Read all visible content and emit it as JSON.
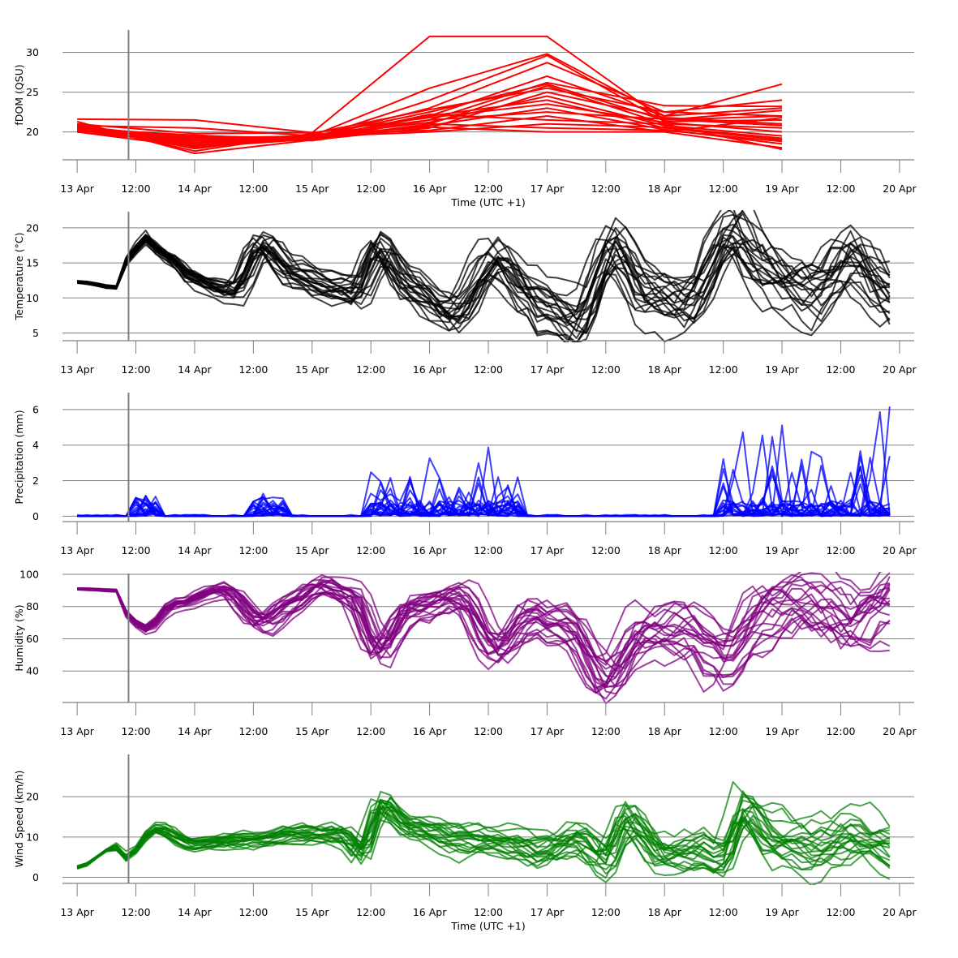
{
  "figure": {
    "background": "#ffffff",
    "grid_color": "#808080",
    "axis_color": "#808080",
    "nowcast_line_color": "#808080",
    "nowcast_time": "2024-04-13T10:30",
    "x_range": [
      "2024-04-12T21:00",
      "2024-04-20T03:00"
    ],
    "x_ticks": [
      {
        "t": "2024-04-13T00:00",
        "label": "13 Apr"
      },
      {
        "t": "2024-04-13T12:00",
        "label": "12:00"
      },
      {
        "t": "2024-04-14T00:00",
        "label": "14 Apr"
      },
      {
        "t": "2024-04-14T12:00",
        "label": "12:00"
      },
      {
        "t": "2024-04-15T00:00",
        "label": "15 Apr"
      },
      {
        "t": "2024-04-15T12:00",
        "label": "12:00"
      },
      {
        "t": "2024-04-16T00:00",
        "label": "16 Apr"
      },
      {
        "t": "2024-04-16T12:00",
        "label": "12:00"
      },
      {
        "t": "2024-04-17T00:00",
        "label": "17 Apr"
      },
      {
        "t": "2024-04-17T12:00",
        "label": "12:00"
      },
      {
        "t": "2024-04-18T00:00",
        "label": "18 Apr"
      },
      {
        "t": "2024-04-18T12:00",
        "label": "12:00"
      },
      {
        "t": "2024-04-19T00:00",
        "label": "19 Apr"
      },
      {
        "t": "2024-04-19T12:00",
        "label": "12:00"
      },
      {
        "t": "2024-04-20T00:00",
        "label": "20 Apr"
      }
    ],
    "xlabel": "Time (UTC +1)"
  },
  "chart_data": [
    {
      "type": "line",
      "ylabel": "fDOM (QSU)",
      "ylim": [
        16.5,
        32.8
      ],
      "yticks": [
        20,
        25,
        30
      ],
      "color": "#ff0000",
      "opacity": 1.0,
      "show_xlabel": true,
      "x": [
        "2024-04-13T00:00",
        "2024-04-14T00:00",
        "2024-04-15T00:00",
        "2024-04-16T00:00",
        "2024-04-17T00:00",
        "2024-04-18T00:00",
        "2024-04-19T00:00"
      ],
      "series": [
        {
          "values": [
            21.6,
            21.5,
            19.9,
            32.0,
            32.0,
            21.5,
            22.0
          ]
        },
        {
          "values": [
            20.8,
            20.5,
            19.5,
            25.5,
            29.8,
            22.0,
            26.0
          ]
        },
        {
          "values": [
            20.5,
            19.5,
            19.2,
            24.0,
            29.6,
            21.3,
            21.5
          ]
        },
        {
          "values": [
            20.2,
            19.0,
            19.3,
            23.0,
            28.7,
            22.5,
            24.0
          ]
        },
        {
          "values": [
            21.3,
            17.3,
            19.0,
            22.0,
            27.0,
            22.0,
            23.0
          ]
        },
        {
          "values": [
            20.6,
            18.0,
            19.6,
            21.5,
            26.2,
            23.3,
            23.2
          ]
        },
        {
          "values": [
            20.0,
            18.6,
            19.4,
            22.5,
            26.0,
            21.5,
            22.7
          ]
        },
        {
          "values": [
            20.4,
            18.2,
            19.1,
            21.0,
            25.8,
            21.0,
            20.5
          ]
        },
        {
          "values": [
            20.9,
            17.6,
            19.8,
            22.8,
            25.5,
            22.5,
            22.0
          ]
        },
        {
          "values": [
            20.1,
            18.9,
            19.0,
            20.5,
            25.0,
            21.8,
            21.0
          ]
        },
        {
          "values": [
            20.7,
            19.2,
            19.5,
            21.2,
            24.5,
            20.8,
            19.5
          ]
        },
        {
          "values": [
            20.3,
            18.4,
            19.2,
            22.0,
            24.0,
            20.5,
            19.0
          ]
        },
        {
          "values": [
            21.0,
            19.8,
            19.9,
            21.8,
            23.5,
            21.2,
            20.0
          ]
        },
        {
          "values": [
            20.5,
            18.7,
            19.3,
            20.8,
            23.0,
            20.3,
            18.5
          ]
        },
        {
          "values": [
            20.2,
            19.4,
            19.0,
            21.5,
            22.5,
            21.6,
            20.8
          ]
        },
        {
          "values": [
            20.8,
            17.9,
            19.7,
            20.2,
            22.0,
            20.0,
            18.0
          ]
        },
        {
          "values": [
            20.0,
            18.1,
            19.1,
            22.2,
            21.5,
            21.0,
            17.8
          ]
        },
        {
          "values": [
            20.6,
            19.0,
            19.4,
            20.0,
            21.0,
            20.6,
            19.2
          ]
        },
        {
          "values": [
            20.4,
            19.6,
            18.9,
            21.0,
            20.5,
            20.2,
            18.8
          ]
        },
        {
          "values": [
            20.9,
            18.3,
            19.6,
            20.6,
            20.0,
            20.0,
            21.8
          ]
        }
      ]
    },
    {
      "type": "line",
      "ylabel": "Temperature (°C)",
      "ylim": [
        3.9,
        22.3
      ],
      "yticks": [
        5,
        10,
        15,
        20
      ],
      "color": "#000000",
      "opacity": 0.75,
      "show_xlabel": false,
      "members": 20,
      "t_start": "2024-04-13T00:00",
      "t_end": "2024-04-19T23:00",
      "step_hours": 2,
      "spread_start": "2024-04-13T10:00",
      "spread_scale": 1.8,
      "spread_growth": 2.2,
      "phase_jitter_hours": 2.5,
      "anchors": [
        [
          "2024-04-13T00:00",
          12.3
        ],
        [
          "2024-04-13T08:00",
          11.5
        ],
        [
          "2024-04-13T11:00",
          16.5
        ],
        [
          "2024-04-13T14:00",
          18.7
        ],
        [
          "2024-04-13T18:00",
          16.0
        ],
        [
          "2024-04-14T00:00",
          12.8
        ],
        [
          "2024-04-14T08:00",
          11.3
        ],
        [
          "2024-04-14T14:00",
          18.2
        ],
        [
          "2024-04-14T20:00",
          14.0
        ],
        [
          "2024-04-15T05:00",
          11.8
        ],
        [
          "2024-04-15T09:00",
          10.8
        ],
        [
          "2024-04-15T14:00",
          17.5
        ],
        [
          "2024-04-15T20:00",
          12.0
        ],
        [
          "2024-04-16T05:00",
          7.8
        ],
        [
          "2024-04-16T14:00",
          15.5
        ],
        [
          "2024-04-16T20:00",
          11.0
        ],
        [
          "2024-04-17T00:00",
          8.0
        ],
        [
          "2024-04-17T06:00",
          6.0
        ],
        [
          "2024-04-17T14:00",
          17.5
        ],
        [
          "2024-04-17T20:00",
          11.0
        ],
        [
          "2024-04-18T05:00",
          9.5
        ],
        [
          "2024-04-18T14:00",
          19.8
        ],
        [
          "2024-04-18T20:00",
          15.0
        ],
        [
          "2024-04-19T02:00",
          12.5
        ],
        [
          "2024-04-19T07:00",
          11.5
        ],
        [
          "2024-04-19T14:00",
          16.5
        ],
        [
          "2024-04-19T23:00",
          10.5
        ]
      ]
    },
    {
      "type": "line",
      "ylabel": "Precipitation (mm)",
      "ylim": [
        -0.3,
        6.95
      ],
      "yticks": [
        0,
        2,
        4,
        6
      ],
      "color": "#0000ff",
      "opacity": 0.75,
      "show_xlabel": false,
      "members": 20,
      "t_start": "2024-04-13T00:00",
      "t_end": "2024-04-19T23:00",
      "step_hours": 2,
      "rain_windows": [
        {
          "start": "2024-04-13T11:00",
          "end": "2024-04-13T17:00",
          "max": 1.3
        },
        {
          "start": "2024-04-14T11:00",
          "end": "2024-04-14T19:00",
          "max": 1.3
        },
        {
          "start": "2024-04-15T11:00",
          "end": "2024-04-16T18:00",
          "max": 3.9
        },
        {
          "start": "2024-04-18T12:00",
          "end": "2024-04-19T23:00",
          "max": 6.5
        }
      ]
    },
    {
      "type": "line",
      "ylabel": "Humidity (%)",
      "ylim": [
        20.5,
        100.5
      ],
      "yticks": [
        40,
        60,
        80,
        100
      ],
      "color": "#800080",
      "opacity": 0.75,
      "show_xlabel": false,
      "members": 20,
      "t_start": "2024-04-13T00:00",
      "t_end": "2024-04-19T23:00",
      "step_hours": 2,
      "spread_start": "2024-04-13T10:00",
      "spread_scale": 5,
      "spread_growth": 3.5,
      "phase_jitter_hours": 2.5,
      "anchors": [
        [
          "2024-04-13T00:00",
          91
        ],
        [
          "2024-04-13T08:00",
          90
        ],
        [
          "2024-04-13T11:00",
          72
        ],
        [
          "2024-04-13T14:00",
          67
        ],
        [
          "2024-04-13T20:00",
          82
        ],
        [
          "2024-04-14T06:00",
          91
        ],
        [
          "2024-04-14T14:00",
          70
        ],
        [
          "2024-04-14T20:00",
          82
        ],
        [
          "2024-04-15T02:00",
          94
        ],
        [
          "2024-04-15T08:00",
          88
        ],
        [
          "2024-04-15T14:00",
          52
        ],
        [
          "2024-04-15T20:00",
          78
        ],
        [
          "2024-04-16T06:00",
          86
        ],
        [
          "2024-04-16T14:00",
          52
        ],
        [
          "2024-04-16T20:00",
          72
        ],
        [
          "2024-04-17T04:00",
          68
        ],
        [
          "2024-04-17T12:00",
          34
        ],
        [
          "2024-04-17T20:00",
          64
        ],
        [
          "2024-04-18T04:00",
          66
        ],
        [
          "2024-04-18T12:00",
          44
        ],
        [
          "2024-04-18T20:00",
          74
        ],
        [
          "2024-04-19T04:00",
          82
        ],
        [
          "2024-04-19T10:00",
          78
        ],
        [
          "2024-04-19T14:00",
          70
        ],
        [
          "2024-04-19T23:00",
          84
        ]
      ]
    },
    {
      "type": "line",
      "ylabel": "Wind Speed (km/h)",
      "ylim": [
        -1.5,
        30.5
      ],
      "yticks": [
        0,
        10,
        20
      ],
      "color": "#008000",
      "opacity": 0.72,
      "show_xlabel": true,
      "members": 20,
      "t_start": "2024-04-13T00:00",
      "t_end": "2024-04-19T23:00",
      "step_hours": 2,
      "spread_start": "2024-04-13T08:00",
      "spread_scale": 3,
      "spread_growth": 1.5,
      "phase_jitter_hours": 2,
      "anchors": [
        [
          "2024-04-13T00:00",
          2.5
        ],
        [
          "2024-04-13T08:00",
          7.5
        ],
        [
          "2024-04-13T10:00",
          5.0
        ],
        [
          "2024-04-13T16:00",
          12.0
        ],
        [
          "2024-04-14T00:00",
          8.0
        ],
        [
          "2024-04-14T12:00",
          9.0
        ],
        [
          "2024-04-14T20:00",
          10.5
        ],
        [
          "2024-04-15T06:00",
          10.5
        ],
        [
          "2024-04-15T10:00",
          6.0
        ],
        [
          "2024-04-15T14:00",
          18.0
        ],
        [
          "2024-04-15T20:00",
          12.0
        ],
        [
          "2024-04-16T08:00",
          9.0
        ],
        [
          "2024-04-16T16:00",
          8.0
        ],
        [
          "2024-04-17T00:00",
          6.0
        ],
        [
          "2024-04-17T06:00",
          9.0
        ],
        [
          "2024-04-17T12:00",
          4.0
        ],
        [
          "2024-04-17T16:00",
          14.0
        ],
        [
          "2024-04-18T00:00",
          5.0
        ],
        [
          "2024-04-18T10:00",
          7.0
        ],
        [
          "2024-04-18T12:00",
          6.0
        ],
        [
          "2024-04-18T16:00",
          18.0
        ],
        [
          "2024-04-18T22:00",
          10.0
        ],
        [
          "2024-04-19T06:00",
          7.0
        ],
        [
          "2024-04-19T14:00",
          10.0
        ],
        [
          "2024-04-19T23:00",
          7.0
        ]
      ]
    }
  ]
}
